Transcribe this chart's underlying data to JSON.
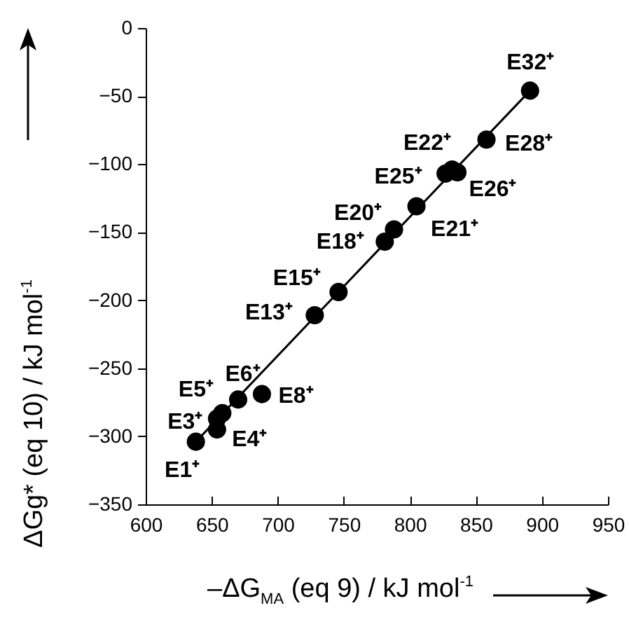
{
  "chart_data": {
    "type": "scatter",
    "xlabel": "–ΔG$_{MA}$ (eq 9) / kJ mol$^{-1}$",
    "ylabel": "ΔGg* (eq 10) / kJ mol$^{-1}$",
    "xlim": [
      600,
      950
    ],
    "ylim": [
      -350,
      0
    ],
    "xticks": [
      600,
      650,
      700,
      750,
      800,
      850,
      900,
      950
    ],
    "yticks": [
      -350,
      -300,
      -250,
      -200,
      -150,
      -100,
      -50,
      0
    ],
    "series": [
      {
        "type": "scatter",
        "marker": "circle",
        "color": "#000000",
        "x": [
          638,
          654,
          654,
          658,
          670,
          688,
          728,
          746,
          781,
          788,
          805,
          827,
          832,
          836,
          858,
          891
        ],
        "values": [
          -304,
          -287,
          -295,
          -283,
          -273,
          -269,
          -211,
          -194,
          -157,
          -148,
          -131,
          -107,
          -104,
          -106,
          -82,
          -46
        ],
        "value_labels": [
          "E1⁺",
          "E3⁺",
          "E4⁺",
          "E5⁺",
          "E6⁺",
          "E8⁺",
          "E13⁺",
          "E15⁺",
          "E18⁺",
          "E20⁺",
          "E21⁺",
          "E25⁺",
          "E22⁺",
          "E26⁺",
          "E28⁺",
          "E32⁺"
        ]
      },
      {
        "type": "line",
        "color": "#000000",
        "x": [
          638,
          891
        ],
        "values": [
          -304,
          -46
        ]
      }
    ]
  }
}
